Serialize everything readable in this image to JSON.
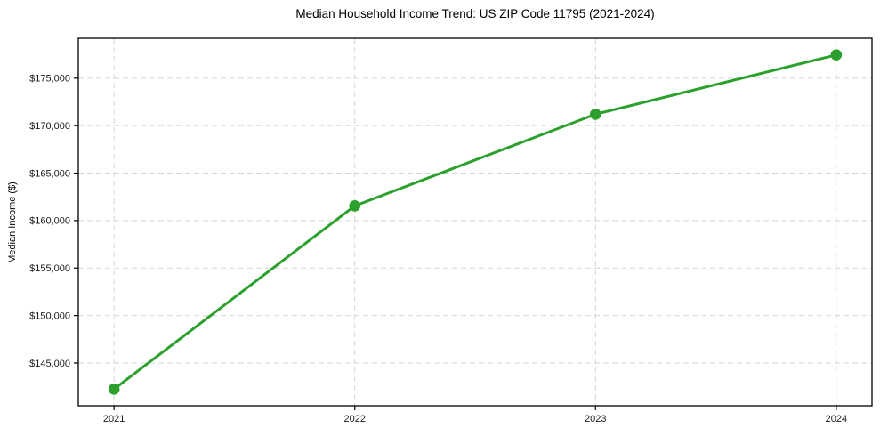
{
  "chart_data": {
    "type": "line",
    "title": "Median Household Income Trend: US ZIP Code 11795 (2021-2024)",
    "xlabel": "",
    "ylabel": "Median Income ($)",
    "x": [
      "2021",
      "2022",
      "2023",
      "2024"
    ],
    "series": [
      {
        "name": "Median Household Income",
        "values": [
          142250,
          161550,
          171200,
          177450
        ]
      }
    ],
    "ytick_values": [
      145000,
      150000,
      155000,
      160000,
      165000,
      170000,
      175000
    ],
    "ytick_labels": [
      "$145,000",
      "$150,000",
      "$155,000",
      "$160,000",
      "$165,000",
      "$170,000",
      "$175,000"
    ],
    "ylim": [
      140500,
      179200
    ],
    "x_margin": 0.045,
    "grid": true,
    "grid_style": "dashed",
    "legend": false,
    "line_color": "#2ca02c",
    "grid_color": "#d5d5d5",
    "spine_color": "#000000",
    "marker": "circle"
  }
}
